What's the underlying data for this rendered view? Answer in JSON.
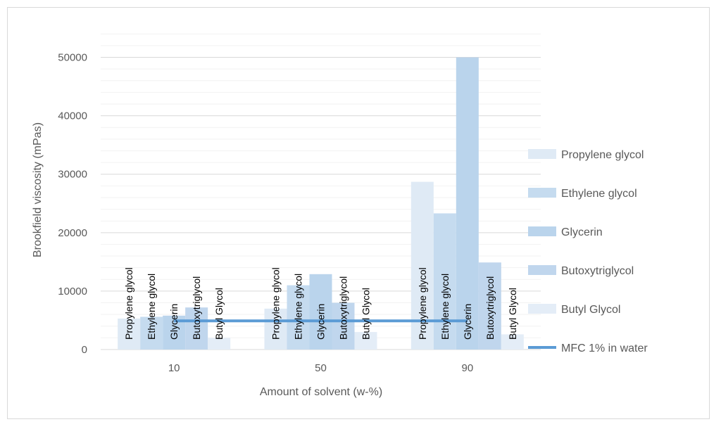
{
  "chart_data": {
    "type": "bar",
    "xlabel": "Amount of solvent (w-%)",
    "ylabel": "Brookfield viscosity (mPas)",
    "categories": [
      "10",
      "50",
      "90"
    ],
    "ylim": [
      0,
      55000
    ],
    "yticks": [
      0,
      10000,
      20000,
      30000,
      40000,
      50000
    ],
    "gridlines": true,
    "minor_gridlines": true,
    "legend_position": "right",
    "series": [
      {
        "name": "Propylene glycol",
        "values": [
          5300,
          7000,
          28700
        ],
        "color": "#dfeaf5"
      },
      {
        "name": "Ethylene glycol",
        "values": [
          5600,
          11000,
          23300
        ],
        "color": "#c5dbef"
      },
      {
        "name": "Glycerin",
        "values": [
          5800,
          12900,
          50000
        ],
        "color": "#bad4ec"
      },
      {
        "name": "Butoxytriglycol",
        "values": [
          7200,
          8000,
          14900
        ],
        "color": "#c0d6ed"
      },
      {
        "name": "Butyl Glycol",
        "values": [
          2000,
          3000,
          2600
        ],
        "color": "#e4edf7"
      }
    ],
    "reference_line": {
      "name": "MFC 1% in water",
      "value": 4900,
      "color": "#5b9bd5"
    }
  }
}
